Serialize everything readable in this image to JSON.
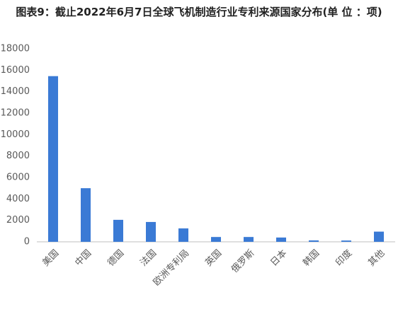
{
  "chart_data": {
    "type": "bar",
    "title": "图表9：截止2022年6月7日全球飞机制造行业专利来源国家分布(单 位 ：项)",
    "categories": [
      "美国",
      "中国",
      "德国",
      "法国",
      "欧洲专利局",
      "英国",
      "俄罗斯",
      "日本",
      "韩国",
      "印度",
      "其他"
    ],
    "values": [
      15450,
      5000,
      2050,
      1850,
      1250,
      450,
      450,
      400,
      130,
      120,
      950
    ],
    "color": "#3a7ad5",
    "ylim": [
      0,
      18000
    ],
    "yticks": [
      0,
      2000,
      4000,
      6000,
      8000,
      10000,
      12000,
      14000,
      16000,
      18000
    ],
    "grid": false
  }
}
